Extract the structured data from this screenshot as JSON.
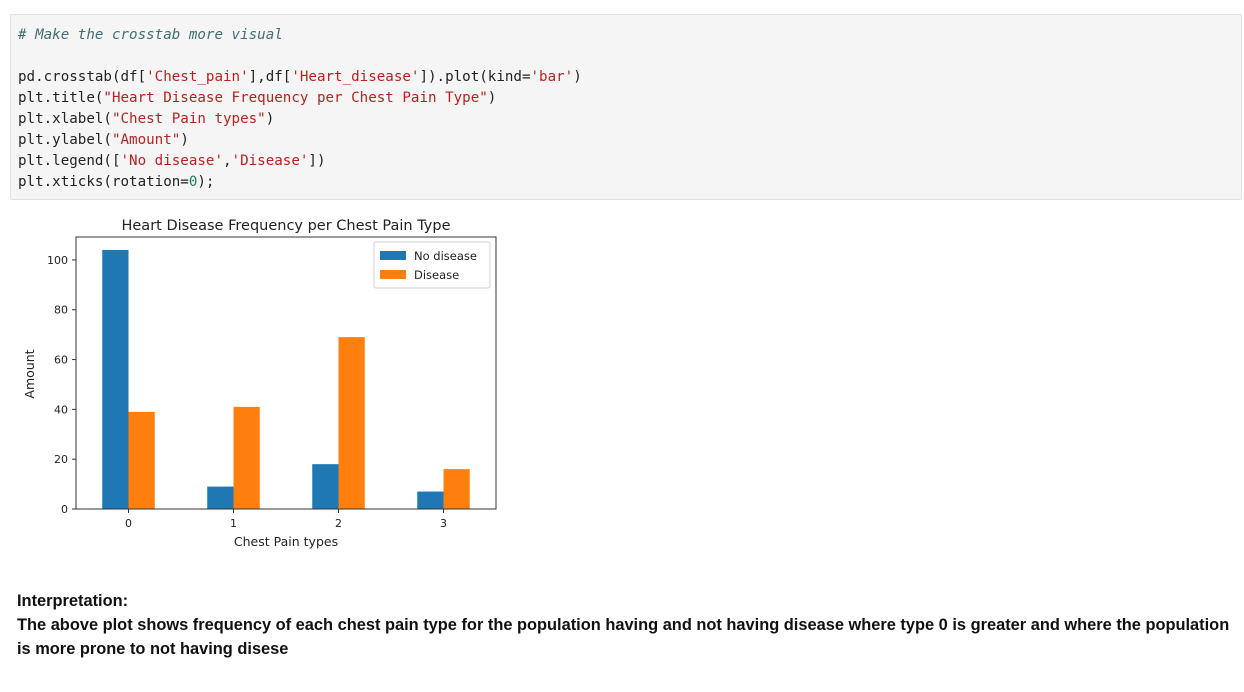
{
  "code_cell": {
    "lines": [
      {
        "type": "comment",
        "segments": [
          {
            "t": "plain",
            "text": "# Make the crosstab more visual"
          }
        ]
      },
      {
        "type": "blank",
        "segments": []
      },
      {
        "type": "code",
        "segments": [
          {
            "t": "plain",
            "text": "pd.crosstab(df["
          },
          {
            "t": "str",
            "text": "'Chest_pain'"
          },
          {
            "t": "plain",
            "text": "],df["
          },
          {
            "t": "str",
            "text": "'Heart_disease'"
          },
          {
            "t": "plain",
            "text": "]).plot(kind="
          },
          {
            "t": "str",
            "text": "'bar'"
          },
          {
            "t": "plain",
            "text": ")"
          }
        ]
      },
      {
        "type": "code",
        "segments": [
          {
            "t": "plain",
            "text": "plt.title("
          },
          {
            "t": "str",
            "text": "\"Heart Disease Frequency per Chest Pain Type\""
          },
          {
            "t": "plain",
            "text": ")"
          }
        ]
      },
      {
        "type": "code",
        "segments": [
          {
            "t": "plain",
            "text": "plt.xlabel("
          },
          {
            "t": "str",
            "text": "\"Chest Pain types\""
          },
          {
            "t": "plain",
            "text": ")"
          }
        ]
      },
      {
        "type": "code",
        "segments": [
          {
            "t": "plain",
            "text": "plt.ylabel("
          },
          {
            "t": "str",
            "text": "\"Amount\""
          },
          {
            "t": "plain",
            "text": ")"
          }
        ]
      },
      {
        "type": "code",
        "segments": [
          {
            "t": "plain",
            "text": "plt.legend(["
          },
          {
            "t": "str",
            "text": "'No disease'"
          },
          {
            "t": "plain",
            "text": ","
          },
          {
            "t": "str",
            "text": "'Disease'"
          },
          {
            "t": "plain",
            "text": "])"
          }
        ]
      },
      {
        "type": "code",
        "segments": [
          {
            "t": "plain",
            "text": "plt.xticks(rotation="
          },
          {
            "t": "num",
            "text": "0"
          },
          {
            "t": "plain",
            "text": ");"
          }
        ]
      }
    ]
  },
  "chart_data": {
    "type": "bar",
    "title": "Heart Disease Frequency per Chest Pain Type",
    "xlabel": "Chest Pain types",
    "ylabel": "Amount",
    "categories": [
      "0",
      "1",
      "2",
      "3"
    ],
    "series": [
      {
        "name": "No disease",
        "color": "#1f77b4",
        "values": [
          104,
          9,
          18,
          7
        ]
      },
      {
        "name": "Disease",
        "color": "#ff7f0e",
        "values": [
          39,
          41,
          69,
          16
        ]
      }
    ],
    "ylim": [
      0,
      109.2
    ],
    "yticks": [
      0,
      20,
      40,
      60,
      80,
      100
    ],
    "grid": false,
    "legend_position": "top-right"
  },
  "interpretation": {
    "heading": "Interpretation:",
    "body": "The above plot shows frequency of each chest pain type for the population having and not having disease where type 0 is greater and where the population is more prone to not having disese"
  }
}
